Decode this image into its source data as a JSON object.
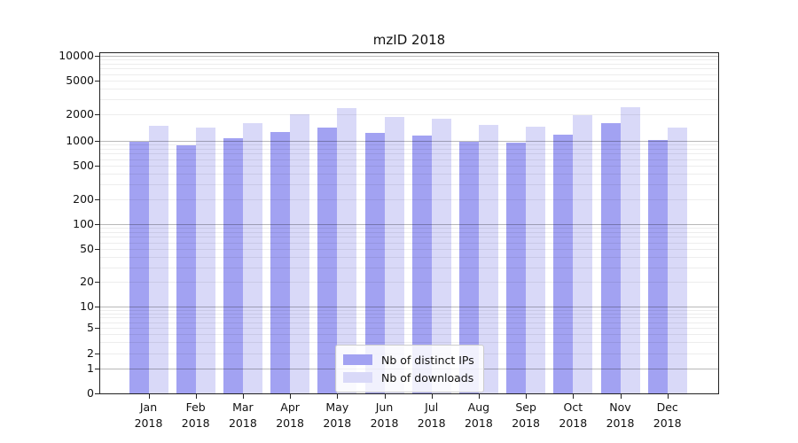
{
  "chart_data": {
    "type": "bar",
    "title": "mzID 2018",
    "categories": [
      "Jan",
      "Feb",
      "Mar",
      "Apr",
      "May",
      "Jun",
      "Jul",
      "Aug",
      "Sep",
      "Oct",
      "Nov",
      "Dec"
    ],
    "x_year_label": "2018",
    "series": [
      {
        "name": "Nb of distinct IPs",
        "color": "#a2a2f2",
        "values": [
          970,
          885,
          1060,
          1250,
          1420,
          1240,
          1150,
          985,
          955,
          1170,
          1590,
          1020
        ]
      },
      {
        "name": "Nb of downloads",
        "color": "#d9d9f8",
        "values": [
          1490,
          1420,
          1580,
          1980,
          2370,
          1860,
          1770,
          1500,
          1440,
          1960,
          2420,
          1430
        ]
      }
    ],
    "yticks": [
      0,
      1,
      2,
      5,
      10,
      20,
      50,
      100,
      200,
      500,
      1000,
      2000,
      5000,
      10000
    ],
    "ylim": [
      0,
      11000
    ],
    "yscale": "symlog",
    "grid": "both",
    "legend_position": "lower-center",
    "colors": {
      "grid_major": "#b8b8b8",
      "grid_minor": "#ededed",
      "axis": "#222222",
      "background": "#ffffff"
    }
  }
}
